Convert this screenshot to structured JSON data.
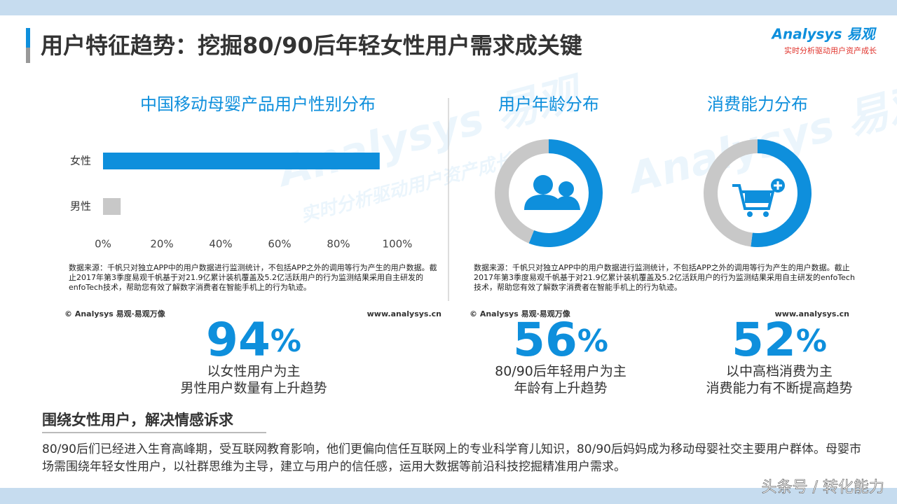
{
  "header": {
    "title": "用户特征趋势：挖掘80/90后年轻女性用户需求成关键",
    "logo": "Analysys 易观",
    "slogan": "实时分析驱动用户资产成长"
  },
  "chart_data": [
    {
      "type": "bar",
      "orientation": "horizontal",
      "title": "中国移动母婴产品用户性别分布",
      "categories": [
        "女性",
        "男性"
      ],
      "values": [
        94,
        6
      ],
      "colors": [
        "#0e8fdc",
        "#c8c8c8"
      ],
      "xlim": [
        0,
        100
      ],
      "xticks": [
        {
          "value": 0,
          "label": "0%"
        },
        {
          "value": 20,
          "label": "20%"
        },
        {
          "value": 40,
          "label": "40%"
        },
        {
          "value": 60,
          "label": "60%"
        },
        {
          "value": 80,
          "label": "80%"
        },
        {
          "value": 100,
          "label": "100%"
        }
      ]
    },
    {
      "type": "pie",
      "donut": true,
      "title": "用户年龄分布",
      "values": [
        56,
        44
      ],
      "colors": [
        "#0e8fdc",
        "#c8c8c8"
      ]
    },
    {
      "type": "pie",
      "donut": true,
      "title": "消费能力分布",
      "values": [
        52,
        48
      ],
      "colors": [
        "#0e8fdc",
        "#c8c8c8"
      ]
    }
  ],
  "sources": [
    {
      "note": "数据来源：千帆只对独立APP中的用户数据进行监测统计，不包括APP之外的调用等行为产生的用户数据。截止2017年第3季度易观千帆基于对21.9亿累计装机覆盖及5.2亿活跃用户的行为监测结果采用自主研发的enfoTech技术，帮助您有效了解数字消费者在智能手机上的行为轨迹。",
      "copyright": "© Analysys 易观·易观万像",
      "site": "www.analysys.cn"
    },
    {
      "note": "数据来源：千帆只对独立APP中的用户数据进行监测统计，不包括APP之外的调用等行为产生的用户数据。截止2017年第3季度易观千帆基于对21.9亿累计装机覆盖及5.2亿活跃用户的行为监测结果采用自主研发的enfoTech技术，帮助您有效了解数字消费者在智能手机上的行为轨迹。",
      "copyright": "© Analysys 易观·易观万像",
      "site": "www.analysys.cn"
    }
  ],
  "stats": [
    {
      "number": "94",
      "unit": "%",
      "lines": [
        "以女性用户为主",
        "男性用户数量有上升趋势"
      ]
    },
    {
      "number": "56",
      "unit": "%",
      "lines": [
        "80/90后年轻用户为主",
        "年龄有上升趋势"
      ]
    },
    {
      "number": "52",
      "unit": "%",
      "lines": [
        "以中高档消费为主",
        "消费能力有不断提高趋势"
      ]
    }
  ],
  "summary": {
    "heading": "围绕女性用户，解决情感诉求",
    "text": "80/90后们已经进入生育高峰期，受互联网教育影响，他们更偏向信任互联网上的专业科学育儿知识，80/90后妈妈成为移动母婴社交主要用户群体。母婴市场需围绕年轻女性用户，以社群思维为主导，建立与用户的信任感，运用大数据等前沿科技挖掘精准用户需求。"
  },
  "footer": {
    "watermark": "头条号 / 转化能力"
  }
}
